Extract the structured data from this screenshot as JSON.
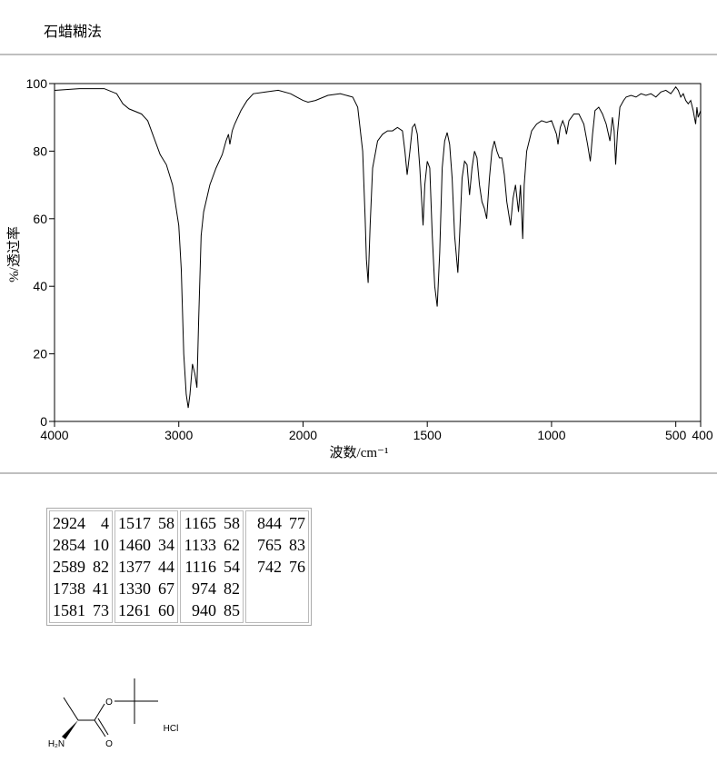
{
  "header": {
    "title": "石蜡糊法"
  },
  "chart_data": {
    "type": "line",
    "xlabel": "波数/cm⁻¹",
    "ylabel": "%/透过率",
    "xlim": [
      4000,
      400
    ],
    "x_scale_break": {
      "value": 2000,
      "ratio": 2
    },
    "xticks": [
      4000,
      3000,
      2000,
      1500,
      1000,
      500,
      400
    ],
    "ylim": [
      0,
      100
    ],
    "yticks": [
      0,
      20,
      40,
      60,
      80,
      100
    ],
    "color": "#000000",
    "x": [
      4000,
      3800,
      3600,
      3500,
      3450,
      3400,
      3300,
      3250,
      3200,
      3150,
      3100,
      3050,
      3000,
      2980,
      2960,
      2940,
      2924,
      2910,
      2890,
      2870,
      2854,
      2840,
      2820,
      2800,
      2750,
      2700,
      2650,
      2620,
      2600,
      2589,
      2570,
      2550,
      2500,
      2450,
      2400,
      2300,
      2200,
      2100,
      2050,
      2000,
      1980,
      1950,
      1900,
      1850,
      1800,
      1780,
      1760,
      1750,
      1745,
      1738,
      1730,
      1720,
      1700,
      1680,
      1660,
      1640,
      1620,
      1600,
      1590,
      1581,
      1570,
      1560,
      1550,
      1540,
      1530,
      1517,
      1510,
      1500,
      1490,
      1480,
      1470,
      1460,
      1450,
      1440,
      1430,
      1420,
      1410,
      1400,
      1390,
      1377,
      1370,
      1360,
      1350,
      1340,
      1330,
      1320,
      1310,
      1300,
      1290,
      1280,
      1270,
      1261,
      1250,
      1240,
      1230,
      1220,
      1210,
      1200,
      1190,
      1180,
      1165,
      1155,
      1145,
      1133,
      1125,
      1116,
      1110,
      1100,
      1080,
      1060,
      1040,
      1020,
      1000,
      990,
      980,
      974,
      965,
      955,
      945,
      940,
      930,
      910,
      890,
      870,
      855,
      844,
      835,
      825,
      810,
      795,
      780,
      765,
      755,
      748,
      742,
      735,
      725,
      710,
      700,
      680,
      660,
      640,
      620,
      600,
      580,
      560,
      540,
      520,
      500,
      490,
      480,
      470,
      460,
      450,
      440,
      430,
      420,
      415,
      410,
      400
    ],
    "values": [
      98,
      98.5,
      98.5,
      97,
      94,
      92.5,
      91,
      89,
      84,
      79,
      76,
      70,
      58,
      45,
      20,
      8,
      4,
      8,
      17,
      14,
      10,
      30,
      55,
      62,
      70,
      75,
      79,
      83,
      85,
      82,
      86,
      88,
      92,
      95,
      97,
      97.5,
      98,
      97,
      96,
      95,
      94.5,
      95,
      96.5,
      97,
      96,
      93,
      80,
      60,
      48,
      41,
      58,
      75,
      83,
      85,
      86,
      86,
      87,
      86,
      80,
      73,
      80,
      87,
      88,
      85,
      75,
      58,
      70,
      77,
      75,
      55,
      40,
      34,
      50,
      75,
      83,
      85.5,
      82,
      72,
      55,
      44,
      55,
      72,
      77,
      76,
      67,
      75,
      80,
      78,
      70,
      65,
      63,
      60,
      72,
      80,
      83,
      80,
      78,
      78,
      73,
      65,
      58,
      66,
      70,
      62,
      70,
      54,
      70,
      80,
      86,
      88,
      89,
      88.5,
      89,
      87,
      85,
      82,
      87,
      89,
      87,
      85,
      89,
      91,
      91,
      88,
      82,
      77,
      85,
      92,
      93,
      91,
      88,
      83,
      90,
      86,
      76,
      85,
      93,
      95,
      96,
      96.5,
      96,
      97,
      96.5,
      97,
      96,
      97.5,
      98,
      97,
      99,
      98,
      96,
      97,
      95,
      94,
      95,
      92,
      88,
      93,
      90,
      92
    ]
  },
  "peak_table": {
    "columns": [
      [
        [
          2924,
          4
        ],
        [
          2854,
          10
        ],
        [
          2589,
          82
        ],
        [
          1738,
          41
        ],
        [
          1581,
          73
        ]
      ],
      [
        [
          1517,
          58
        ],
        [
          1460,
          34
        ],
        [
          1377,
          44
        ],
        [
          1330,
          67
        ],
        [
          1261,
          60
        ]
      ],
      [
        [
          1165,
          58
        ],
        [
          1133,
          62
        ],
        [
          1116,
          54
        ],
        [
          974,
          82
        ],
        [
          940,
          85
        ]
      ],
      [
        [
          844,
          77
        ],
        [
          765,
          83
        ],
        [
          742,
          76
        ]
      ]
    ]
  },
  "structure": {
    "labels": [
      "O",
      "O",
      "H₂N",
      "HCl"
    ]
  }
}
